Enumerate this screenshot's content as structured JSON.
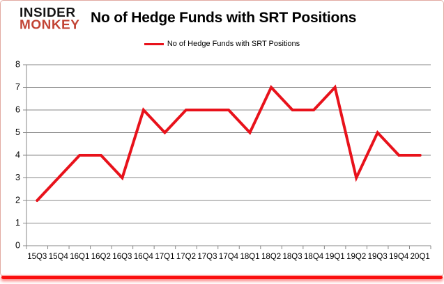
{
  "logo": {
    "line1": "INSIDER",
    "line2": "MONKEY"
  },
  "title": "No of Hedge Funds with SRT Positions",
  "legend": {
    "label": "No of Hedge Funds with SRT Positions"
  },
  "colors": {
    "series": "#e8121b",
    "grid": "#878787",
    "axis": "#878787",
    "tick_text": "#000000",
    "logo_black": "#141414",
    "logo_red": "#c24434",
    "frame_border": "#e2a9a1",
    "bottom_glow": "#fb0f0f"
  },
  "chart_data": {
    "type": "line",
    "title": "No of Hedge Funds with SRT Positions",
    "categories": [
      "15Q3",
      "15Q4",
      "16Q1",
      "16Q2",
      "16Q3",
      "16Q4",
      "17Q1",
      "17Q2",
      "17Q3",
      "17Q4",
      "18Q1",
      "18Q2",
      "18Q3",
      "18Q4",
      "19Q1",
      "19Q2",
      "19Q3",
      "19Q4",
      "20Q1"
    ],
    "series": [
      {
        "name": "No of Hedge Funds with SRT Positions",
        "values": [
          2,
          3,
          4,
          4,
          3,
          6,
          5,
          6,
          6,
          6,
          5,
          7,
          6,
          6,
          7,
          3,
          5,
          4,
          4
        ]
      }
    ],
    "xlabel": "",
    "ylabel": "",
    "ylim": [
      0,
      8
    ],
    "yticks": [
      0,
      1,
      2,
      3,
      4,
      5,
      6,
      7,
      8
    ],
    "grid": true,
    "legend_position": "top-center"
  }
}
